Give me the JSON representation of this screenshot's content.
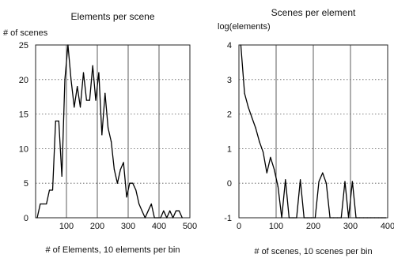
{
  "chart_data": [
    {
      "type": "line",
      "title": "Elements per scene",
      "ylabel": "# of scenes",
      "xlabel": "# of Elements, 10 elements per bin",
      "xlim": [
        0,
        500
      ],
      "ylim": [
        0,
        25
      ],
      "xticks": [
        100,
        200,
        300,
        400,
        500
      ],
      "yticks": [
        0,
        5,
        10,
        15,
        20,
        25
      ],
      "grid": true,
      "series": [
        {
          "x": [
            5,
            15,
            25,
            35,
            45,
            55,
            65,
            75,
            85,
            95,
            105,
            115,
            125,
            135,
            145,
            155,
            165,
            175,
            185,
            195,
            205,
            215,
            225,
            235,
            245,
            255,
            265,
            275,
            285,
            295,
            305,
            315,
            325,
            335,
            345,
            355,
            365,
            375,
            385,
            395,
            405,
            415,
            425,
            435,
            445,
            455,
            465,
            475
          ],
          "y": [
            0,
            2,
            2,
            2,
            4,
            4,
            14,
            14,
            6,
            20,
            25,
            20,
            16,
            19,
            16,
            21,
            17,
            17,
            22,
            17,
            21,
            12,
            18,
            13,
            11,
            7,
            5,
            7,
            8,
            3,
            5,
            5,
            4,
            2,
            1,
            0,
            1,
            2,
            0,
            0,
            0,
            1,
            0,
            1,
            0,
            1,
            1,
            0
          ]
        }
      ]
    },
    {
      "type": "line",
      "title": "Scenes per element",
      "ylabel": "log(elements)",
      "xlabel": "# of scenes, 10 scenes per bin",
      "xlim": [
        0,
        400
      ],
      "ylim": [
        -1,
        4
      ],
      "xticks": [
        0,
        100,
        200,
        300,
        400
      ],
      "yticks": [
        -1,
        0,
        1,
        2,
        3,
        4
      ],
      "grid": true,
      "series": [
        {
          "x": [
            5,
            15,
            25,
            35,
            45,
            55,
            65,
            75,
            85,
            95,
            105,
            115,
            125,
            135,
            145,
            155,
            165,
            175,
            185,
            195,
            205,
            215,
            225,
            235,
            245,
            255,
            265,
            275,
            285,
            295,
            305,
            315,
            325,
            335,
            345,
            355,
            365,
            375,
            385,
            395
          ],
          "y": [
            4.0,
            2.6,
            2.2,
            1.9,
            1.6,
            1.2,
            0.9,
            0.3,
            0.75,
            0.4,
            -0.1,
            -1.0,
            0.1,
            -1.0,
            -1.0,
            -1.0,
            0.1,
            -1.0,
            -1.0,
            -1.0,
            -1.0,
            0.05,
            0.3,
            0.0,
            -1.0,
            -1.0,
            -1.0,
            -1.0,
            0.05,
            -1.0,
            0.05,
            -1.0,
            -1.0,
            -1.0,
            -1.0,
            -1.0,
            -1.0,
            -1.0,
            -1.0,
            -1.0
          ]
        }
      ]
    }
  ]
}
